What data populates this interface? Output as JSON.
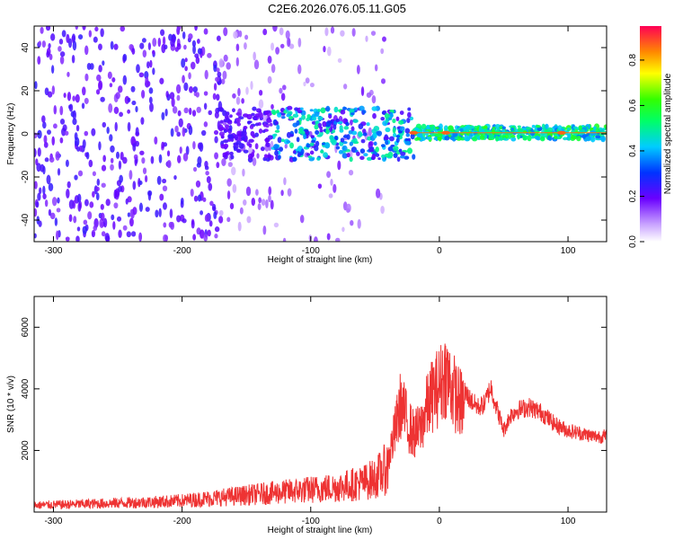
{
  "title": "C2E6.2026.076.05.11.G05",
  "chart_data": [
    {
      "type": "heatmap",
      "title": "C2E6.2026.076.05.11.G05",
      "xlabel": "Height of straight line (km)",
      "ylabel": "Frequency (Hz)",
      "xlim": [
        -315,
        130
      ],
      "ylim": [
        -50,
        50
      ],
      "x_ticks": [
        "-300",
        "-200",
        "-100",
        "0",
        "100"
      ],
      "y_ticks": [
        "-40",
        "-20",
        "0",
        "20",
        "40"
      ],
      "colorbar": {
        "label": "Normalized spectral amplitude",
        "range": [
          0.0,
          0.95
        ],
        "ticks": [
          "0.0",
          "0.2",
          "0.4",
          "0.6",
          "0.8"
        ]
      },
      "description_points": {
        "noise_region_x": [
          -315,
          -20
        ],
        "signal_center_freq": 0,
        "signal_region_x": [
          -130,
          130
        ],
        "strong_peaks_x": [
          -20,
          5,
          95
        ]
      }
    },
    {
      "type": "line",
      "xlabel": "Height of straight line (km)",
      "ylabel": "SNR (10 * v/v)",
      "xlim": [
        -315,
        130
      ],
      "ylim": [
        0,
        7000
      ],
      "x_ticks": [
        "-300",
        "-200",
        "-100",
        "0",
        "100"
      ],
      "y_ticks": [
        "2000",
        "4000",
        "6000"
      ],
      "series": [
        {
          "name": "SNR",
          "color": "#ee3333",
          "x": [
            -315,
            -280,
            -250,
            -220,
            -200,
            -180,
            -160,
            -140,
            -120,
            -100,
            -80,
            -60,
            -50,
            -40,
            -35,
            -30,
            -25,
            -20,
            -15,
            -10,
            -5,
            0,
            5,
            10,
            15,
            20,
            25,
            30,
            35,
            40,
            45,
            50,
            55,
            60,
            70,
            80,
            90,
            100,
            110,
            120,
            130
          ],
          "y": [
            300,
            350,
            400,
            450,
            500,
            600,
            700,
            800,
            900,
            1000,
            1100,
            1300,
            1500,
            2000,
            3000,
            4200,
            3500,
            3000,
            3200,
            4000,
            4600,
            4900,
            5400,
            4800,
            4300,
            4100,
            3800,
            3600,
            3700,
            4300,
            3500,
            2800,
            3300,
            3500,
            3600,
            3400,
            3000,
            2800,
            2700,
            2600,
            2600
          ]
        }
      ]
    }
  ]
}
